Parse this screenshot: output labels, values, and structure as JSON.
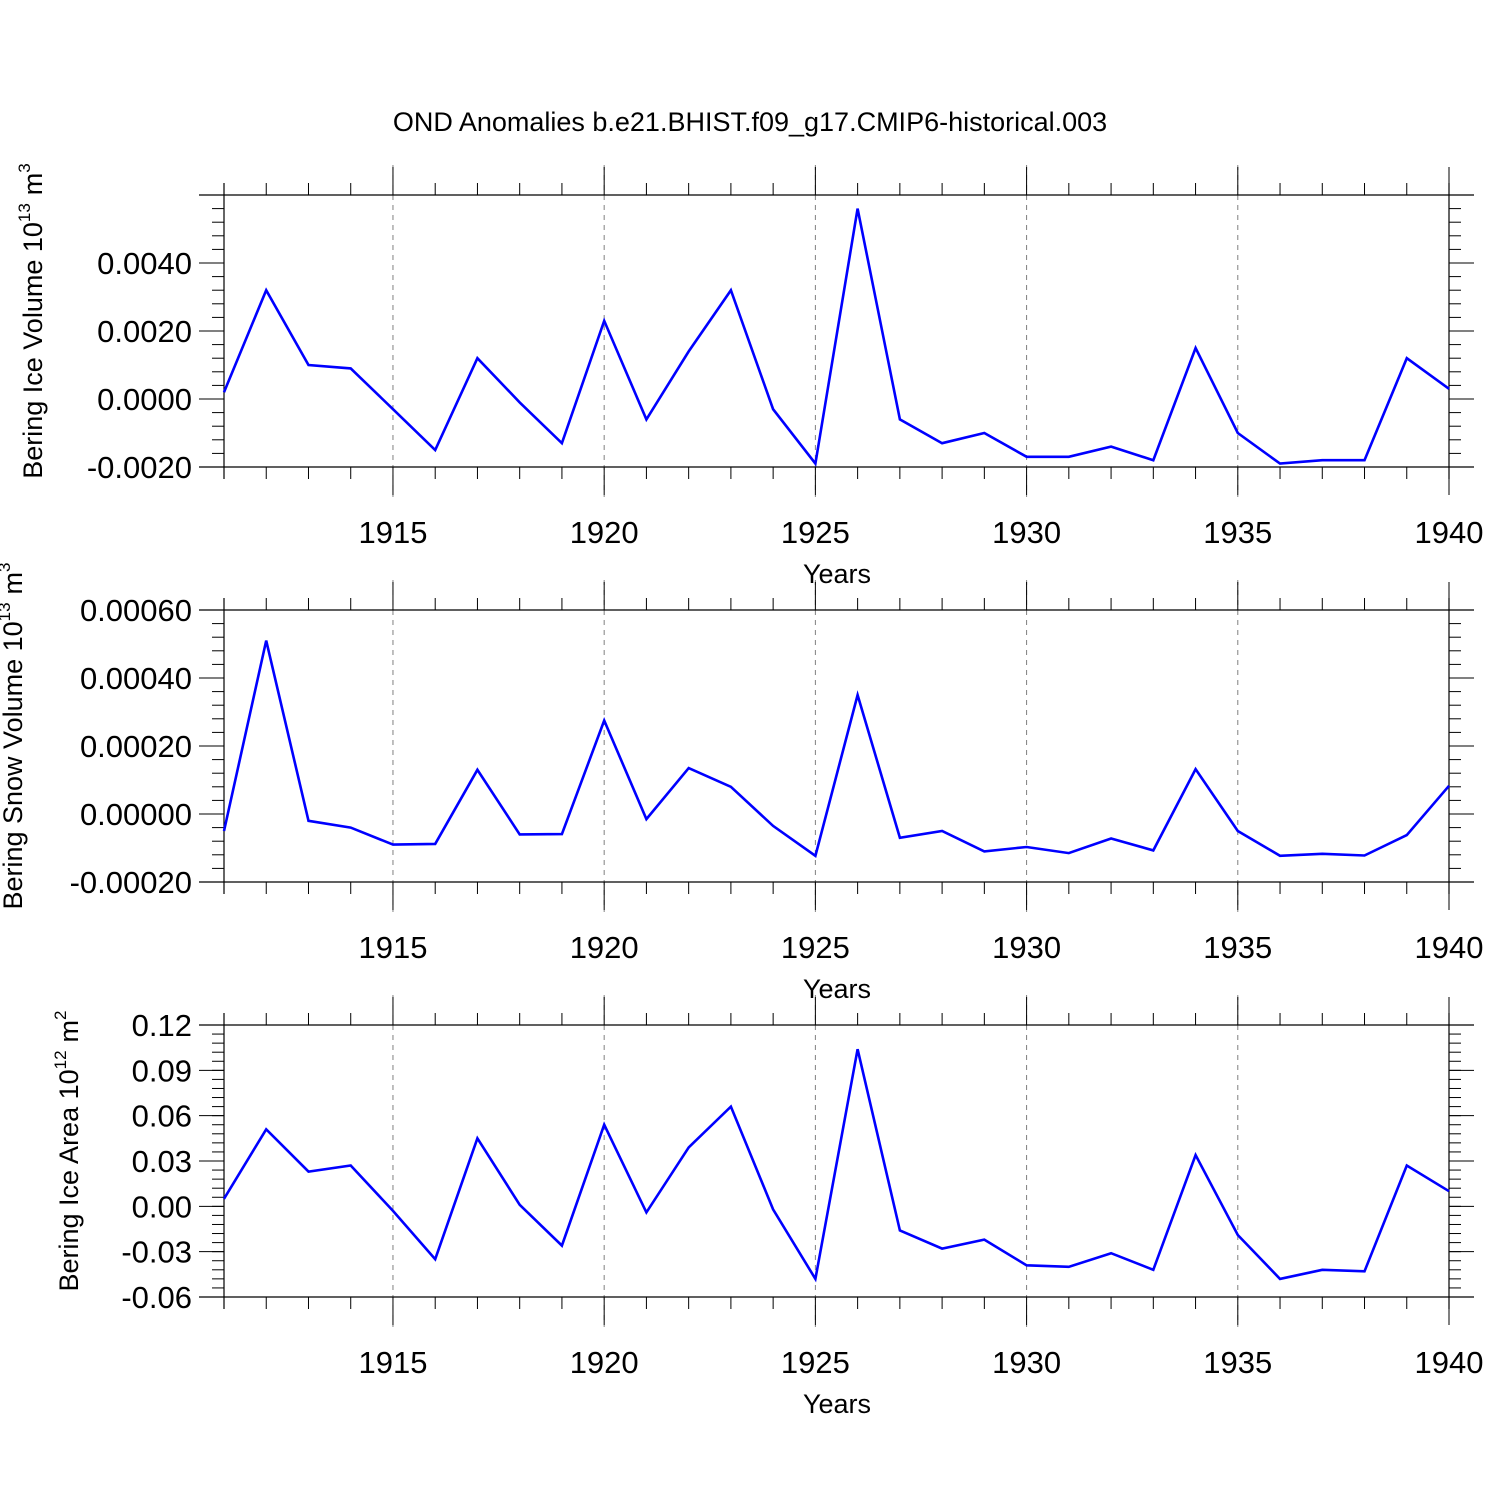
{
  "figure_title": "OND Anomalies b.e21.BHIST.f09_g17.CMIP6-historical.003",
  "colors": {
    "line": "#0000ff",
    "axis": "#000000",
    "grid": "#808080",
    "background": "#ffffff"
  },
  "chart_data": [
    {
      "type": "line",
      "ylabel": "Bering Ice Volume 10",
      "ylabel_exp": "13",
      "ylabel_unit": "m",
      "ylabel_unit_exp": "3",
      "xlabel": "Years",
      "xlim": [
        1911,
        1940
      ],
      "ylim": [
        -0.002,
        0.006
      ],
      "yticks": [
        -0.002,
        0.0,
        0.002,
        0.004
      ],
      "ytick_labels": [
        "-0.0020",
        "0.0000",
        "0.0020",
        "0.0040"
      ],
      "xticks": [
        1915,
        1920,
        1925,
        1930,
        1935,
        1940
      ],
      "xtick_labels": [
        "1915",
        "1920",
        "1925",
        "1930",
        "1935",
        "1940"
      ],
      "series": [
        {
          "name": "Bering Ice Volume",
          "x": [
            1911,
            1912,
            1913,
            1914,
            1915,
            1916,
            1917,
            1918,
            1919,
            1920,
            1921,
            1922,
            1923,
            1924,
            1925,
            1926,
            1927,
            1928,
            1929,
            1930,
            1931,
            1932,
            1933,
            1934,
            1935,
            1936,
            1937,
            1938,
            1939,
            1940
          ],
          "values": [
            0.0002,
            0.0032,
            0.001,
            0.0009,
            -0.0003,
            -0.0015,
            0.0012,
            -0.0001,
            -0.0013,
            0.0023,
            -0.0006,
            0.0014,
            0.0032,
            -0.0003,
            -0.0019,
            0.0056,
            -0.0006,
            -0.0013,
            -0.001,
            -0.0017,
            -0.0017,
            -0.0014,
            -0.0018,
            0.0015,
            -0.001,
            -0.0019,
            -0.0018,
            -0.0018,
            0.0012,
            0.0003
          ]
        }
      ]
    },
    {
      "type": "line",
      "ylabel": "Bering Snow Volume 10",
      "ylabel_exp": "13",
      "ylabel_unit": "m",
      "ylabel_unit_exp": "3",
      "xlabel": "Years",
      "xlim": [
        1911,
        1940
      ],
      "ylim": [
        -0.0002,
        0.0006
      ],
      "yticks": [
        -0.0002,
        0.0,
        0.0002,
        0.0004,
        0.0006
      ],
      "ytick_labels": [
        "-0.00020",
        "0.00000",
        "0.00020",
        "0.00040",
        "0.00060"
      ],
      "xticks": [
        1915,
        1920,
        1925,
        1930,
        1935,
        1940
      ],
      "xtick_labels": [
        "1915",
        "1920",
        "1925",
        "1930",
        "1935",
        "1940"
      ],
      "series": [
        {
          "name": "Bering Snow Volume",
          "x": [
            1911,
            1912,
            1913,
            1914,
            1915,
            1916,
            1917,
            1918,
            1919,
            1920,
            1921,
            1922,
            1923,
            1924,
            1925,
            1926,
            1927,
            1928,
            1929,
            1930,
            1931,
            1932,
            1933,
            1934,
            1935,
            1936,
            1937,
            1938,
            1939,
            1940
          ],
          "values": [
            -5e-05,
            0.00051,
            -2e-05,
            -4e-05,
            -9e-05,
            -8.8e-05,
            0.00013,
            -6e-05,
            -5.9e-05,
            0.000275,
            -1.5e-05,
            0.000135,
            8e-05,
            -3.5e-05,
            -0.000123,
            0.00035,
            -7e-05,
            -5e-05,
            -0.00011,
            -9.7e-05,
            -0.000115,
            -7.2e-05,
            -0.000107,
            0.000132,
            -5e-05,
            -0.000123,
            -0.000117,
            -0.000122,
            -6.2e-05,
            8.3e-05
          ]
        }
      ]
    },
    {
      "type": "line",
      "ylabel": "Bering Ice Area 10",
      "ylabel_exp": "12",
      "ylabel_unit": "m",
      "ylabel_unit_exp": "2",
      "xlabel": "Years",
      "xlim": [
        1911,
        1940
      ],
      "ylim": [
        -0.06,
        0.12
      ],
      "yticks": [
        -0.06,
        -0.03,
        0.0,
        0.03,
        0.06,
        0.09,
        0.12
      ],
      "ytick_labels": [
        "-0.06",
        "-0.03",
        "0.00",
        "0.03",
        "0.06",
        "0.09",
        "0.12"
      ],
      "xticks": [
        1915,
        1920,
        1925,
        1930,
        1935,
        1940
      ],
      "xtick_labels": [
        "1915",
        "1920",
        "1925",
        "1930",
        "1935",
        "1940"
      ],
      "series": [
        {
          "name": "Bering Ice Area",
          "x": [
            1911,
            1912,
            1913,
            1914,
            1915,
            1916,
            1917,
            1918,
            1919,
            1920,
            1921,
            1922,
            1923,
            1924,
            1925,
            1926,
            1927,
            1928,
            1929,
            1930,
            1931,
            1932,
            1933,
            1934,
            1935,
            1936,
            1937,
            1938,
            1939,
            1940
          ],
          "values": [
            0.005,
            0.051,
            0.023,
            0.027,
            -0.003,
            -0.035,
            0.045,
            0.001,
            -0.026,
            0.054,
            -0.004,
            0.039,
            0.066,
            -0.002,
            -0.048,
            0.104,
            -0.016,
            -0.028,
            -0.022,
            -0.039,
            -0.04,
            -0.031,
            -0.042,
            0.034,
            -0.019,
            -0.048,
            -0.042,
            -0.043,
            0.027,
            0.01
          ]
        }
      ]
    }
  ]
}
